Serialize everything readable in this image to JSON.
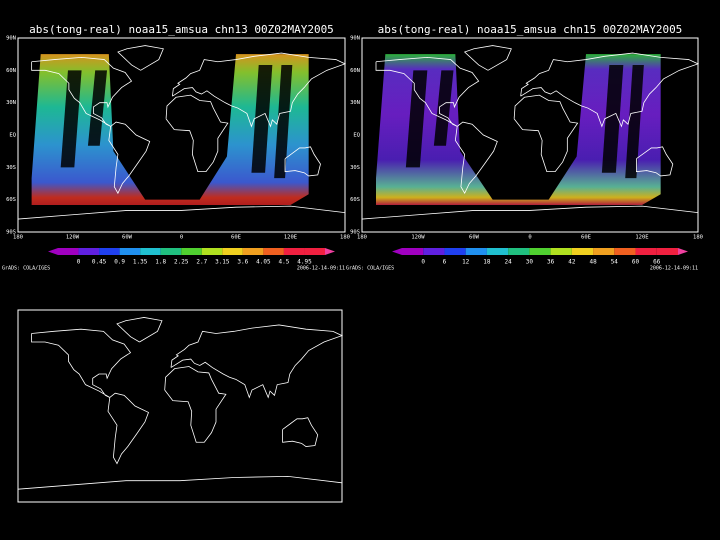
{
  "panels": [
    {
      "title": "abs(tong-real) noaa15_amsua chn13 00Z02MAY2005",
      "lat_labels": [
        "90N",
        "60N",
        "30N",
        "EQ",
        "30S",
        "60S",
        "90S"
      ],
      "lon_labels": [
        "180",
        "120W",
        "60W",
        "0",
        "60E",
        "120E",
        "180"
      ],
      "colorbar_labels": [
        "0",
        "0.45",
        "0.9",
        "1.35",
        "1.8",
        "2.25",
        "2.7",
        "3.15",
        "3.6",
        "4.05",
        "4.5",
        "4.95"
      ],
      "footer_left": "GrADS: COLA/IGES",
      "footer_right": "2006-12-14-09:11"
    },
    {
      "title": "abs(tong-real) noaa15_amsua chn15 00Z02MAY2005",
      "lat_labels": [
        "90N",
        "60N",
        "30N",
        "EQ",
        "30S",
        "60S",
        "90S"
      ],
      "lon_labels": [
        "180",
        "120W",
        "60W",
        "0",
        "60E",
        "120E",
        "180"
      ],
      "colorbar_labels": [
        "0",
        "6",
        "12",
        "18",
        "24",
        "30",
        "36",
        "42",
        "48",
        "54",
        "60",
        "66"
      ],
      "footer_left": "GrADS: COLA/IGES",
      "footer_right": "2006-12-14-09:11"
    }
  ]
}
